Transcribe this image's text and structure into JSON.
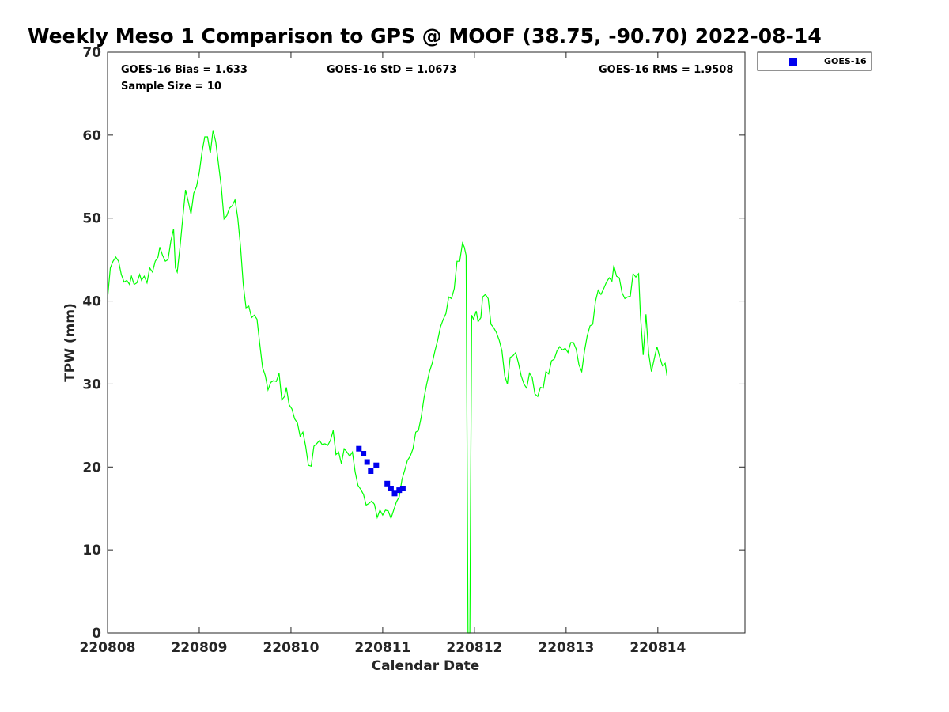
{
  "chart_data": {
    "type": "scatter",
    "title": "Weekly Meso 1 Comparison to GPS @ MOOF (38.75, -90.70) 2022-08-14",
    "xlabel": "Calendar Date",
    "ylabel": "TPW (mm)",
    "xlim": [
      0,
      6.95
    ],
    "ylim": [
      0,
      70
    ],
    "x_ticks": [
      {
        "value": 0,
        "label": "220808"
      },
      {
        "value": 1,
        "label": "220809"
      },
      {
        "value": 2,
        "label": "220810"
      },
      {
        "value": 3,
        "label": "220811"
      },
      {
        "value": 4,
        "label": "220812"
      },
      {
        "value": 5,
        "label": "220813"
      },
      {
        "value": 6,
        "label": "220814"
      }
    ],
    "y_ticks": [
      0,
      10,
      20,
      30,
      40,
      50,
      60,
      70
    ],
    "grid": false,
    "stats": {
      "bias": "GOES-16 Bias = 1.633",
      "std": "GOES-16 StD = 1.0673",
      "rms": "GOES-16 RMS = 1.9508",
      "sample": "Sample Size = 10"
    },
    "legend": {
      "position": "outside-top-right",
      "entries": [
        "GOES-16"
      ]
    },
    "series": [
      {
        "name": "GPS",
        "kind": "line",
        "color": "#00ff00",
        "points": [
          [
            0.0,
            40.3
          ],
          [
            0.03,
            44.0
          ],
          [
            0.06,
            44.8
          ],
          [
            0.09,
            45.3
          ],
          [
            0.12,
            44.8
          ],
          [
            0.15,
            43.2
          ],
          [
            0.18,
            42.3
          ],
          [
            0.21,
            42.5
          ],
          [
            0.24,
            42.0
          ],
          [
            0.26,
            43.0
          ],
          [
            0.29,
            42.0
          ],
          [
            0.32,
            42.2
          ],
          [
            0.35,
            43.2
          ],
          [
            0.37,
            42.5
          ],
          [
            0.4,
            43.0
          ],
          [
            0.43,
            42.2
          ],
          [
            0.46,
            44.0
          ],
          [
            0.49,
            43.5
          ],
          [
            0.52,
            44.8
          ],
          [
            0.55,
            45.3
          ],
          [
            0.57,
            46.5
          ],
          [
            0.6,
            45.5
          ],
          [
            0.63,
            44.8
          ],
          [
            0.66,
            45.0
          ],
          [
            0.69,
            47.2
          ],
          [
            0.72,
            48.7
          ],
          [
            0.74,
            44.0
          ],
          [
            0.76,
            43.5
          ],
          [
            0.79,
            46.5
          ],
          [
            0.82,
            50.0
          ],
          [
            0.85,
            53.4
          ],
          [
            0.88,
            52.0
          ],
          [
            0.91,
            50.5
          ],
          [
            0.94,
            53.0
          ],
          [
            0.97,
            53.8
          ],
          [
            1.0,
            55.5
          ],
          [
            1.03,
            58.0
          ],
          [
            1.06,
            59.8
          ],
          [
            1.09,
            59.8
          ],
          [
            1.12,
            57.8
          ],
          [
            1.15,
            60.6
          ],
          [
            1.18,
            59.2
          ],
          [
            1.21,
            56.5
          ],
          [
            1.24,
            53.8
          ],
          [
            1.27,
            49.9
          ],
          [
            1.3,
            50.3
          ],
          [
            1.33,
            51.2
          ],
          [
            1.36,
            51.5
          ],
          [
            1.39,
            52.2
          ],
          [
            1.42,
            50.0
          ],
          [
            1.45,
            46.5
          ],
          [
            1.48,
            42.0
          ],
          [
            1.51,
            39.2
          ],
          [
            1.54,
            39.4
          ],
          [
            1.57,
            38.0
          ],
          [
            1.6,
            38.3
          ],
          [
            1.63,
            37.8
          ],
          [
            1.66,
            34.8
          ],
          [
            1.69,
            32.0
          ],
          [
            1.72,
            31.0
          ],
          [
            1.75,
            29.3
          ],
          [
            1.78,
            30.2
          ],
          [
            1.81,
            30.4
          ],
          [
            1.84,
            30.3
          ],
          [
            1.87,
            31.3
          ],
          [
            1.9,
            28.1
          ],
          [
            1.93,
            28.5
          ],
          [
            1.95,
            29.6
          ],
          [
            1.98,
            27.5
          ],
          [
            2.01,
            27.0
          ],
          [
            2.04,
            25.8
          ],
          [
            2.07,
            25.3
          ],
          [
            2.1,
            23.7
          ],
          [
            2.13,
            24.2
          ],
          [
            2.16,
            22.5
          ],
          [
            2.19,
            20.2
          ],
          [
            2.22,
            20.1
          ],
          [
            2.25,
            22.5
          ],
          [
            2.28,
            22.8
          ],
          [
            2.31,
            23.2
          ],
          [
            2.34,
            22.7
          ],
          [
            2.37,
            22.8
          ],
          [
            2.4,
            22.6
          ],
          [
            2.43,
            23.2
          ],
          [
            2.46,
            24.4
          ],
          [
            2.49,
            21.5
          ],
          [
            2.52,
            21.8
          ],
          [
            2.55,
            20.4
          ],
          [
            2.58,
            22.2
          ],
          [
            2.61,
            21.8
          ],
          [
            2.64,
            21.3
          ],
          [
            2.67,
            21.8
          ],
          [
            2.7,
            19.4
          ],
          [
            2.73,
            17.8
          ],
          [
            2.76,
            17.3
          ],
          [
            2.79,
            16.7
          ],
          [
            2.82,
            15.4
          ],
          [
            2.85,
            15.6
          ],
          [
            2.88,
            15.9
          ],
          [
            2.91,
            15.5
          ],
          [
            2.94,
            13.9
          ],
          [
            2.97,
            14.8
          ],
          [
            3.0,
            14.2
          ],
          [
            3.03,
            14.8
          ],
          [
            3.06,
            14.7
          ],
          [
            3.09,
            13.8
          ],
          [
            3.12,
            14.8
          ],
          [
            3.15,
            15.8
          ],
          [
            3.18,
            16.4
          ],
          [
            3.21,
            18.5
          ],
          [
            3.24,
            19.6
          ],
          [
            3.27,
            20.8
          ],
          [
            3.3,
            21.3
          ],
          [
            3.33,
            22.2
          ],
          [
            3.36,
            24.2
          ],
          [
            3.39,
            24.4
          ],
          [
            3.42,
            26.0
          ],
          [
            3.45,
            28.3
          ],
          [
            3.48,
            30.0
          ],
          [
            3.51,
            31.5
          ],
          [
            3.54,
            32.5
          ],
          [
            3.57,
            34.0
          ],
          [
            3.6,
            35.3
          ],
          [
            3.63,
            36.9
          ],
          [
            3.66,
            37.8
          ],
          [
            3.69,
            38.5
          ],
          [
            3.72,
            40.5
          ],
          [
            3.75,
            40.3
          ],
          [
            3.78,
            41.5
          ],
          [
            3.81,
            44.8
          ],
          [
            3.84,
            44.8
          ],
          [
            3.87,
            47.0
          ],
          [
            3.89,
            46.5
          ],
          [
            3.91,
            45.5
          ],
          [
            3.93,
            0.0
          ],
          [
            3.94,
            0.0
          ],
          [
            3.95,
            0.0
          ],
          [
            3.97,
            38.3
          ],
          [
            3.99,
            37.8
          ],
          [
            4.02,
            38.8
          ],
          [
            4.04,
            37.5
          ],
          [
            4.07,
            38.0
          ],
          [
            4.09,
            40.5
          ],
          [
            4.12,
            40.8
          ],
          [
            4.15,
            40.3
          ],
          [
            4.18,
            37.2
          ],
          [
            4.21,
            36.8
          ],
          [
            4.24,
            36.2
          ],
          [
            4.27,
            35.3
          ],
          [
            4.3,
            34.0
          ],
          [
            4.33,
            31.0
          ],
          [
            4.36,
            30.0
          ],
          [
            4.39,
            33.2
          ],
          [
            4.42,
            33.4
          ],
          [
            4.45,
            33.8
          ],
          [
            4.48,
            32.5
          ],
          [
            4.51,
            31.0
          ],
          [
            4.54,
            30.0
          ],
          [
            4.57,
            29.5
          ],
          [
            4.6,
            31.3
          ],
          [
            4.63,
            30.8
          ],
          [
            4.66,
            28.8
          ],
          [
            4.69,
            28.5
          ],
          [
            4.72,
            29.6
          ],
          [
            4.75,
            29.5
          ],
          [
            4.78,
            31.5
          ],
          [
            4.81,
            31.2
          ],
          [
            4.84,
            32.8
          ],
          [
            4.87,
            33.0
          ],
          [
            4.9,
            34.0
          ],
          [
            4.93,
            34.5
          ],
          [
            4.96,
            34.1
          ],
          [
            4.99,
            34.3
          ],
          [
            5.02,
            33.8
          ],
          [
            5.05,
            35.0
          ],
          [
            5.08,
            35.0
          ],
          [
            5.11,
            34.2
          ],
          [
            5.14,
            32.3
          ],
          [
            5.17,
            31.5
          ],
          [
            5.2,
            34.0
          ],
          [
            5.23,
            35.8
          ],
          [
            5.26,
            37.0
          ],
          [
            5.29,
            37.2
          ],
          [
            5.32,
            40.0
          ],
          [
            5.35,
            41.3
          ],
          [
            5.38,
            40.8
          ],
          [
            5.41,
            41.5
          ],
          [
            5.44,
            42.3
          ],
          [
            5.47,
            42.8
          ],
          [
            5.5,
            42.4
          ],
          [
            5.52,
            44.3
          ],
          [
            5.55,
            43.0
          ],
          [
            5.58,
            42.8
          ],
          [
            5.61,
            41.0
          ],
          [
            5.64,
            40.3
          ],
          [
            5.67,
            40.5
          ],
          [
            5.7,
            40.6
          ],
          [
            5.73,
            43.3
          ],
          [
            5.76,
            42.9
          ],
          [
            5.79,
            43.3
          ],
          [
            5.81,
            38.3
          ],
          [
            5.84,
            33.5
          ],
          [
            5.87,
            38.4
          ],
          [
            5.9,
            33.7
          ],
          [
            5.93,
            31.5
          ],
          [
            5.96,
            33.0
          ],
          [
            5.99,
            34.5
          ],
          [
            6.02,
            33.3
          ],
          [
            6.05,
            32.2
          ],
          [
            6.08,
            32.5
          ],
          [
            6.1,
            31.0
          ]
        ]
      },
      {
        "name": "GOES-16",
        "kind": "scatter",
        "marker": "square",
        "color": "#0000ee",
        "points": [
          [
            2.74,
            22.2
          ],
          [
            2.79,
            21.6
          ],
          [
            2.83,
            20.6
          ],
          [
            2.87,
            19.5
          ],
          [
            2.93,
            20.2
          ],
          [
            3.05,
            18.0
          ],
          [
            3.09,
            17.4
          ],
          [
            3.13,
            16.8
          ],
          [
            3.18,
            17.2
          ],
          [
            3.22,
            17.4
          ]
        ]
      }
    ]
  }
}
